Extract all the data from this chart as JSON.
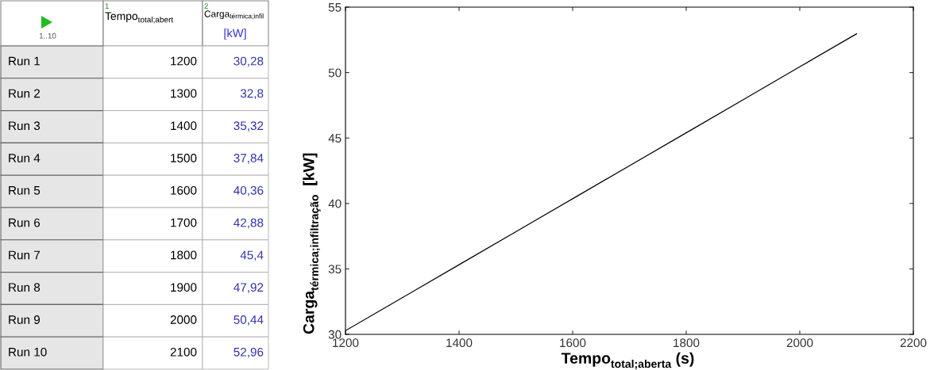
{
  "chart_data": {
    "type": "line",
    "x": [
      1200,
      1300,
      1400,
      1500,
      1600,
      1700,
      1800,
      1900,
      2000,
      2100
    ],
    "series": [
      {
        "color": "#000000",
        "values": [
          30.28,
          32.8,
          35.32,
          37.84,
          40.36,
          42.88,
          45.4,
          47.92,
          50.44,
          52.96
        ]
      }
    ],
    "xlabel": "Tempo$_{total;aberta}$ (s)",
    "ylabel": "Carga$_{térmica;infiltração}$  [kW]",
    "xlim": [
      1200,
      2200
    ],
    "ylim": [
      30,
      55
    ],
    "xticks": [
      1200,
      1400,
      1600,
      1800,
      2000,
      2200
    ],
    "yticks": [
      30,
      35,
      40,
      45,
      50,
      55
    ],
    "marker": "none",
    "line_style": "solid",
    "grid": false,
    "legend": false,
    "annotations": [
      "1..10",
      "1",
      "Tempo$_{total;abert}$",
      "2",
      "Carga$_{térmica;infil}$",
      "[kW]",
      "Run 1",
      "1200",
      "30,28",
      "Run 2",
      "1300",
      "32,8",
      "Run 3",
      "1400",
      "35,32",
      "Run 4",
      "1500",
      "37,84",
      "Run 5",
      "1600",
      "40,36",
      "Run 6",
      "1700",
      "42,88",
      "Run 7",
      "1800",
      "45,4",
      "Run 8",
      "1900",
      "47,92",
      "Run 9",
      "2000",
      "50,44",
      "Run 10",
      "2100",
      "52,96"
    ]
  }
}
